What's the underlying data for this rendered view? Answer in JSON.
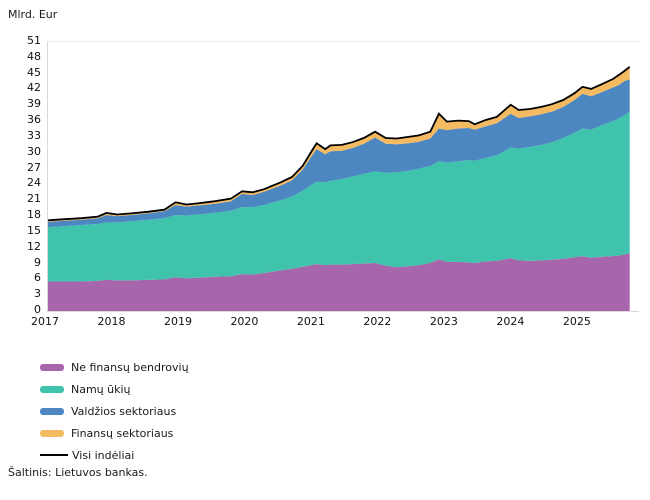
{
  "y_axis_title": "Mlrd. Eur",
  "source_note": "Šaltinis: Lietuvos bankas.",
  "chart_data": {
    "type": "area",
    "stacked": true,
    "title": "",
    "ylabel": "Mlrd. Eur",
    "xlabel": "",
    "grid": false,
    "legend_position": "bottom-left",
    "ylim": [
      0,
      51
    ],
    "xlim": [
      2017,
      2025.89
    ],
    "yticks": [
      0,
      3,
      6,
      9,
      12,
      15,
      18,
      21,
      24,
      27,
      30,
      33,
      36,
      39,
      42,
      45,
      48,
      51
    ],
    "xticks": [
      2017,
      2018,
      2019,
      2020,
      2021,
      2022,
      2023,
      2024,
      2025
    ],
    "x_unit": "metai (mėnesiniai duomenys, 2017-01 – 2025-09)",
    "x": [
      2017.0,
      2017.25,
      2017.5,
      2017.75,
      2017.88,
      2018.04,
      2018.25,
      2018.5,
      2018.75,
      2018.92,
      2019.08,
      2019.25,
      2019.5,
      2019.75,
      2019.92,
      2020.08,
      2020.25,
      2020.5,
      2020.67,
      2020.83,
      2021.0,
      2021.04,
      2021.17,
      2021.25,
      2021.42,
      2021.58,
      2021.75,
      2021.92,
      2022.08,
      2022.25,
      2022.42,
      2022.58,
      2022.75,
      2022.88,
      2023.0,
      2023.17,
      2023.33,
      2023.42,
      2023.58,
      2023.75,
      2023.96,
      2024.08,
      2024.25,
      2024.42,
      2024.58,
      2024.75,
      2024.92,
      2025.04,
      2025.17,
      2025.33,
      2025.5,
      2025.58,
      2025.67,
      2025.75
    ],
    "series": [
      {
        "name": "Ne finansų bendrovių",
        "kind": "area",
        "color": "#a765ab",
        "values": [
          5.6,
          5.6,
          5.6,
          5.7,
          5.9,
          5.8,
          5.8,
          5.9,
          6.0,
          6.4,
          6.2,
          6.3,
          6.5,
          6.6,
          7.0,
          6.9,
          7.2,
          7.7,
          8.0,
          8.4,
          8.8,
          8.9,
          8.7,
          8.8,
          8.8,
          8.9,
          9.0,
          9.1,
          8.6,
          8.3,
          8.5,
          8.7,
          9.1,
          9.8,
          9.3,
          9.3,
          9.2,
          9.1,
          9.4,
          9.5,
          10.0,
          9.6,
          9.5,
          9.6,
          9.7,
          9.9,
          10.2,
          10.4,
          10.1,
          10.3,
          10.4,
          10.5,
          10.7,
          11.0
        ]
      },
      {
        "name": "Namų ūkių",
        "kind": "area",
        "color": "#3fc3ac",
        "values": [
          10.3,
          10.5,
          10.7,
          10.8,
          10.9,
          11.0,
          11.2,
          11.4,
          11.6,
          11.8,
          11.9,
          12.0,
          12.1,
          12.4,
          12.7,
          12.8,
          12.9,
          13.3,
          13.7,
          14.4,
          15.4,
          15.6,
          15.7,
          15.9,
          16.2,
          16.6,
          17.0,
          17.4,
          17.6,
          18.0,
          18.1,
          18.3,
          18.4,
          18.6,
          18.8,
          19.1,
          19.4,
          19.4,
          19.6,
          20.0,
          21.0,
          21.2,
          21.6,
          21.9,
          22.3,
          22.9,
          23.6,
          24.2,
          24.3,
          24.9,
          25.6,
          26.0,
          26.4,
          26.8
        ]
      },
      {
        "name": "Valdžios sektoriaus",
        "kind": "area",
        "color": "#4d87c1",
        "values": [
          1.0,
          1.0,
          1.0,
          1.1,
          1.4,
          1.2,
          1.2,
          1.2,
          1.3,
          1.9,
          1.7,
          1.7,
          1.7,
          1.8,
          2.5,
          2.3,
          2.5,
          2.8,
          3.1,
          4.0,
          5.8,
          6.2,
          5.3,
          5.6,
          5.4,
          5.4,
          5.7,
          6.4,
          5.5,
          5.3,
          5.2,
          5.1,
          5.2,
          6.2,
          6.2,
          6.2,
          6.1,
          5.9,
          6.0,
          6.1,
          6.4,
          5.8,
          5.8,
          5.8,
          5.8,
          5.9,
          6.2,
          6.6,
          6.3,
          6.3,
          6.4,
          6.3,
          6.5,
          6.1
        ]
      },
      {
        "name": "Finansų sektoriaus",
        "kind": "area",
        "color": "#f4ba61",
        "values": [
          0.3,
          0.3,
          0.3,
          0.3,
          0.4,
          0.3,
          0.3,
          0.3,
          0.3,
          0.5,
          0.4,
          0.4,
          0.5,
          0.5,
          0.5,
          0.5,
          0.5,
          0.6,
          0.6,
          0.7,
          1.0,
          1.1,
          1.0,
          1.1,
          1.1,
          1.1,
          1.1,
          1.1,
          1.1,
          1.1,
          1.2,
          1.2,
          1.3,
          2.8,
          1.6,
          1.5,
          1.3,
          1.0,
          1.2,
          1.2,
          1.7,
          1.5,
          1.4,
          1.4,
          1.4,
          1.3,
          1.3,
          1.3,
          1.4,
          1.5,
          1.6,
          1.9,
          1.9,
          2.4
        ]
      },
      {
        "name": "Visi indėliai",
        "kind": "line",
        "color": "#000000",
        "values": [
          17.2,
          17.4,
          17.6,
          17.9,
          18.6,
          18.3,
          18.5,
          18.8,
          19.2,
          20.6,
          20.2,
          20.4,
          20.8,
          21.3,
          22.7,
          22.5,
          23.1,
          24.4,
          25.4,
          27.5,
          31.0,
          31.8,
          30.7,
          31.4,
          31.5,
          32.0,
          32.8,
          34.0,
          32.8,
          32.7,
          33.0,
          33.3,
          34.0,
          37.4,
          35.9,
          36.1,
          36.0,
          35.4,
          36.2,
          36.8,
          39.1,
          38.1,
          38.3,
          38.7,
          39.2,
          40.0,
          41.3,
          42.5,
          42.1,
          43.0,
          44.0,
          44.7,
          45.5,
          46.3
        ]
      }
    ]
  },
  "legend": {
    "items": [
      "Ne finansų bendrovių",
      "Namų ūkių",
      "Valdžios sektoriaus",
      "Finansų sektoriaus",
      "Visi indėliai"
    ]
  }
}
